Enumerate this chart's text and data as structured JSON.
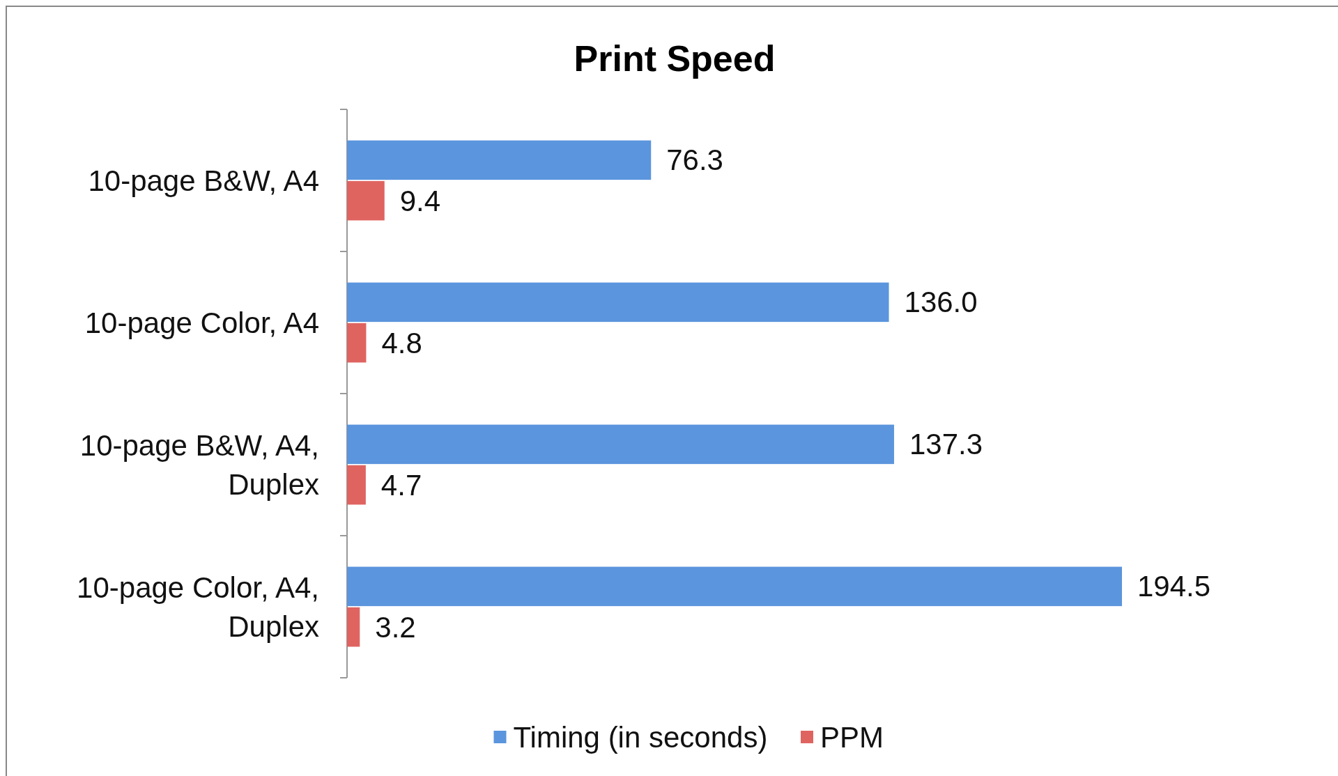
{
  "chart_data": {
    "type": "bar",
    "title": "Print Speed",
    "orientation": "horizontal",
    "legend": "bottom",
    "grid": false,
    "categories": [
      "10-page B&W, A4",
      "10-page Color, A4",
      "10-page B&W, A4, Duplex",
      "10-page Color, A4, Duplex"
    ],
    "series": [
      {
        "name": "Timing (in seconds)",
        "color": "#5b95dd",
        "values": [
          76.3,
          136.0,
          137.3,
          194.5
        ],
        "value_labels": [
          "76.3",
          "136.0",
          "137.3",
          "194.5"
        ]
      },
      {
        "name": "PPM",
        "color": "#df6460",
        "values": [
          9.4,
          4.8,
          4.7,
          3.2
        ],
        "value_labels": [
          "9.4",
          "4.8",
          "4.7",
          "3.2"
        ]
      }
    ]
  }
}
